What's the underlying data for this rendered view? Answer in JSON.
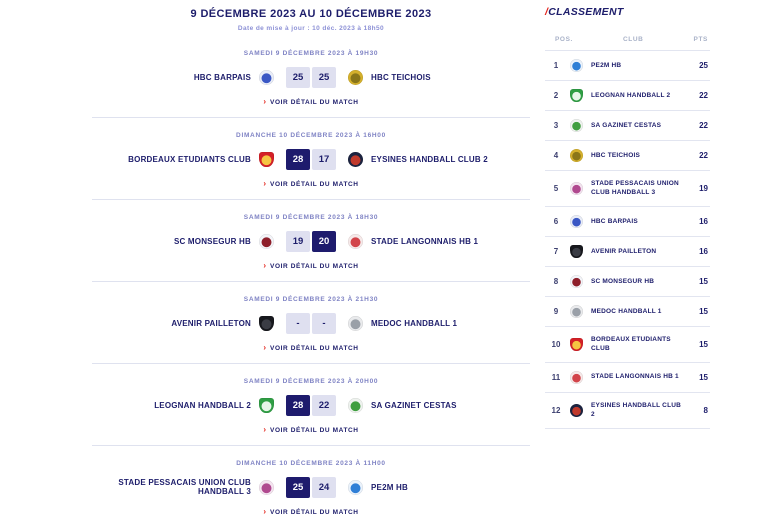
{
  "header": {
    "title": "9 DÉCEMBRE 2023 AU 10 DÉCEMBRE 2023",
    "updated": "Date de mise à jour : 10 déc. 2023 à 18h50"
  },
  "icons": {
    "chevron_right": "›"
  },
  "detail_link_label": "VOIR DÉTAIL DU MATCH",
  "matches": [
    {
      "datetime": "SAMEDI 9 DÉCEMBRE 2023 À 19H30",
      "home": {
        "name": "HBC BARPAIS",
        "logo": {
          "c1": "#e8ecf7",
          "c2": "#3a57c4",
          "shape": "circle"
        }
      },
      "away": {
        "name": "HBC TEICHOIS",
        "logo": {
          "c1": "#d4b02c",
          "c2": "#8a7619",
          "shape": "circle"
        }
      },
      "score": {
        "home": "25",
        "away": "25",
        "home_win": false,
        "away_win": false
      }
    },
    {
      "datetime": "DIMANCHE 10 DÉCEMBRE 2023 À 16H00",
      "home": {
        "name": "BORDEAUX ETUDIANTS CLUB",
        "logo": {
          "c1": "#d42027",
          "c2": "#f5c542",
          "shape": "shield"
        }
      },
      "away": {
        "name": "EYSINES HANDBALL CLUB 2",
        "logo": {
          "c1": "#1c2340",
          "c2": "#c0392b",
          "shape": "circle"
        }
      },
      "score": {
        "home": "28",
        "away": "17",
        "home_win": true,
        "away_win": false
      }
    },
    {
      "datetime": "SAMEDI 9 DÉCEMBRE 2023 À 18H30",
      "home": {
        "name": "SC MONSEGUR HB",
        "logo": {
          "c1": "#f3f4f8",
          "c2": "#8e1f2a",
          "shape": "circle"
        }
      },
      "away": {
        "name": "STADE LANGONNAIS HB 1",
        "logo": {
          "c1": "#f6e9e9",
          "c2": "#d2444a",
          "shape": "circle"
        }
      },
      "score": {
        "home": "19",
        "away": "20",
        "home_win": false,
        "away_win": true
      }
    },
    {
      "datetime": "SAMEDI 9 DÉCEMBRE 2023 À 21H30",
      "home": {
        "name": "AVENIR PAILLETON",
        "logo": {
          "c1": "#17181d",
          "c2": "#3a3c44",
          "shape": "shield"
        }
      },
      "away": {
        "name": "MEDOC HANDBALL 1",
        "logo": {
          "c1": "#e9eaec",
          "c2": "#9aa0a8",
          "shape": "circle"
        }
      },
      "score": {
        "home": "-",
        "away": "-",
        "home_win": false,
        "away_win": false
      }
    },
    {
      "datetime": "SAMEDI 9 DÉCEMBRE 2023 À 20H00",
      "home": {
        "name": "LEOGNAN HANDBALL 2",
        "logo": {
          "c1": "#2f9e44",
          "c2": "#e7f6e9",
          "shape": "shield"
        }
      },
      "away": {
        "name": "SA GAZINET CESTAS",
        "logo": {
          "c1": "#eef2ee",
          "c2": "#3f9e3f",
          "shape": "circle"
        }
      },
      "score": {
        "home": "28",
        "away": "22",
        "home_win": true,
        "away_win": false
      }
    },
    {
      "datetime": "DIMANCHE 10 DÉCEMBRE 2023 À 11H00",
      "home": {
        "name": "STADE PESSACAIS UNION CLUB HANDBALL 3",
        "logo": {
          "c1": "#f3e3ef",
          "c2": "#b0498f",
          "shape": "circle"
        }
      },
      "away": {
        "name": "PE2M HB",
        "logo": {
          "c1": "#eaf2fb",
          "c2": "#2f7fd6",
          "shape": "circle"
        }
      },
      "score": {
        "home": "25",
        "away": "24",
        "home_win": true,
        "away_win": false
      }
    }
  ],
  "classement": {
    "title_slash": "/",
    "title": "CLASSEMENT",
    "columns": {
      "pos": "POS.",
      "club": "CLUB",
      "pts": "PTS"
    },
    "rows": [
      {
        "pos": "1",
        "club": "PE2M HB",
        "pts": "25",
        "logo": {
          "c1": "#eaf2fb",
          "c2": "#2f7fd6",
          "shape": "circle"
        }
      },
      {
        "pos": "2",
        "club": "LEOGNAN HANDBALL 2",
        "pts": "22",
        "logo": {
          "c1": "#2f9e44",
          "c2": "#e7f6e9",
          "shape": "shield"
        }
      },
      {
        "pos": "3",
        "club": "SA GAZINET CESTAS",
        "pts": "22",
        "logo": {
          "c1": "#eef2ee",
          "c2": "#3f9e3f",
          "shape": "circle"
        }
      },
      {
        "pos": "4",
        "club": "HBC TEICHOIS",
        "pts": "22",
        "logo": {
          "c1": "#d4b02c",
          "c2": "#8a7619",
          "shape": "circle"
        }
      },
      {
        "pos": "5",
        "club": "STADE PESSACAIS UNION CLUB HANDBALL 3",
        "pts": "19",
        "logo": {
          "c1": "#f3e3ef",
          "c2": "#b0498f",
          "shape": "circle"
        }
      },
      {
        "pos": "6",
        "club": "HBC BARPAIS",
        "pts": "16",
        "logo": {
          "c1": "#e8ecf7",
          "c2": "#3a57c4",
          "shape": "circle"
        }
      },
      {
        "pos": "7",
        "club": "AVENIR PAILLETON",
        "pts": "16",
        "logo": {
          "c1": "#17181d",
          "c2": "#3a3c44",
          "shape": "shield"
        }
      },
      {
        "pos": "8",
        "club": "SC MONSEGUR HB",
        "pts": "15",
        "logo": {
          "c1": "#f3f4f8",
          "c2": "#8e1f2a",
          "shape": "circle"
        }
      },
      {
        "pos": "9",
        "club": "MEDOC HANDBALL 1",
        "pts": "15",
        "logo": {
          "c1": "#e9eaec",
          "c2": "#9aa0a8",
          "shape": "circle"
        }
      },
      {
        "pos": "10",
        "club": "BORDEAUX ETUDIANTS CLUB",
        "pts": "15",
        "logo": {
          "c1": "#d42027",
          "c2": "#f5c542",
          "shape": "shield"
        }
      },
      {
        "pos": "11",
        "club": "STADE LANGONNAIS HB 1",
        "pts": "15",
        "logo": {
          "c1": "#f6e9e9",
          "c2": "#d2444a",
          "shape": "circle"
        }
      },
      {
        "pos": "12",
        "club": "EYSINES HANDBALL CLUB 2",
        "pts": "8",
        "logo": {
          "c1": "#1c2340",
          "c2": "#c0392b",
          "shape": "circle"
        }
      }
    ]
  },
  "colors": {
    "navy": "#1d1d6b",
    "red_accent": "#e32219",
    "score_win_bg": "#1e1b6d",
    "score_box_bg": "#dfe0f0",
    "divider": "#dfe2ef",
    "muted_label": "#7f83c4",
    "column_header": "#a9b2c8"
  }
}
